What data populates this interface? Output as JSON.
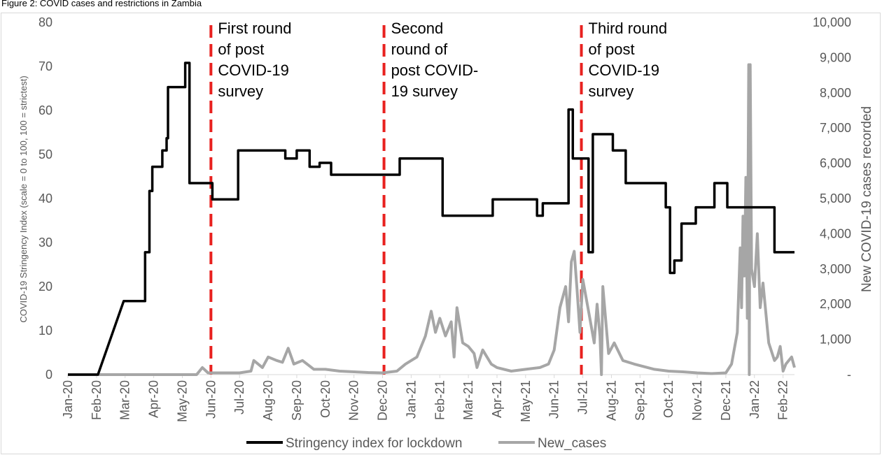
{
  "chart_data": {
    "type": "line",
    "title": "Figure 2: COVID cases and restrictions in Zambia",
    "y_label": "COVID-19 Stringency Index (scale = 0 to 100, 100 = strictest)",
    "y2_label": "New COVID-19 cases recorded",
    "xlim": [
      0,
      25.4
    ],
    "xticks": [
      {
        "value": 0,
        "label": "Jan-20"
      },
      {
        "value": 1,
        "label": "Feb-20"
      },
      {
        "value": 2,
        "label": "Mar-20"
      },
      {
        "value": 3,
        "label": "Apr-20"
      },
      {
        "value": 4,
        "label": "May-20"
      },
      {
        "value": 5,
        "label": "Jun-20"
      },
      {
        "value": 6,
        "label": "Jul-20"
      },
      {
        "value": 7,
        "label": "Aug-20"
      },
      {
        "value": 8,
        "label": "Sep-20"
      },
      {
        "value": 9,
        "label": "Oct-20"
      },
      {
        "value": 10,
        "label": "Nov-20"
      },
      {
        "value": 11,
        "label": "Dec-20"
      },
      {
        "value": 12,
        "label": "Jan-21"
      },
      {
        "value": 13,
        "label": "Feb-21"
      },
      {
        "value": 14,
        "label": "Mar-21"
      },
      {
        "value": 15,
        "label": "Apr-21"
      },
      {
        "value": 16,
        "label": "May-21"
      },
      {
        "value": 17,
        "label": "Jun-21"
      },
      {
        "value": 18,
        "label": "Jul-21"
      },
      {
        "value": 19,
        "label": "Aug-21"
      },
      {
        "value": 20,
        "label": "Sep-21"
      },
      {
        "value": 21,
        "label": "Oct-21"
      },
      {
        "value": 22,
        "label": "Nov-21"
      },
      {
        "value": 23,
        "label": "Dec-21"
      },
      {
        "value": 24,
        "label": "Jan-22"
      },
      {
        "value": 25,
        "label": "Feb-22"
      }
    ],
    "ylim": [
      0,
      80
    ],
    "yticks": [
      0,
      10,
      20,
      30,
      40,
      50,
      60,
      70,
      80
    ],
    "y2lim": [
      0,
      10000
    ],
    "y2ticks": [
      {
        "value": 0,
        "label": "-"
      },
      {
        "value": 1000,
        "label": "1,000"
      },
      {
        "value": 2000,
        "label": "2,000"
      },
      {
        "value": 3000,
        "label": "3,000"
      },
      {
        "value": 4000,
        "label": "4,000"
      },
      {
        "value": 5000,
        "label": "5,000"
      },
      {
        "value": 6000,
        "label": "6,000"
      },
      {
        "value": 7000,
        "label": "7,000"
      },
      {
        "value": 8000,
        "label": "8,000"
      },
      {
        "value": 9000,
        "label": "9,000"
      },
      {
        "value": 10000,
        "label": "10,000"
      }
    ],
    "legend": "bottom",
    "annotations": [
      {
        "x": 5,
        "color": "#e8211f",
        "lines": [
          "First round",
          "of post",
          "COVID-19",
          "survey"
        ]
      },
      {
        "x": 11.05,
        "color": "#e8211f",
        "lines": [
          "Second",
          "round of",
          "post COVID-",
          "19 survey"
        ]
      },
      {
        "x": 17.95,
        "color": "#e8211f",
        "lines": [
          "Third round",
          "of post",
          "COVID-19",
          "survey"
        ]
      }
    ],
    "series": [
      {
        "name": "Stringency index for lockdown",
        "color": "#000000",
        "x": [
          0,
          1.05,
          1.95,
          2.7,
          2.7,
          2.85,
          2.85,
          2.95,
          2.95,
          3.3,
          3.3,
          3.45,
          3.45,
          3.5,
          3.5,
          4.1,
          4.1,
          4.25,
          4.25,
          5.05,
          5.05,
          5.95,
          5.95,
          7.6,
          7.6,
          8.0,
          8.0,
          8.45,
          8.45,
          8.8,
          8.8,
          9.2,
          9.2,
          11.6,
          11.6,
          13.1,
          13.1,
          14.85,
          14.85,
          16.4,
          16.4,
          16.6,
          16.6,
          17.5,
          17.5,
          17.65,
          17.65,
          18.2,
          18.2,
          18.35,
          18.35,
          19.05,
          19.05,
          19.5,
          19.5,
          20.9,
          20.9,
          21.05,
          21.05,
          21.2,
          21.2,
          21.45,
          21.45,
          21.95,
          21.95,
          22.6,
          22.6,
          23.05,
          23.05,
          24.7,
          24.7,
          25.4
        ],
        "values": [
          0,
          0,
          16.7,
          16.7,
          27.8,
          27.8,
          41.7,
          41.7,
          47.2,
          47.2,
          50.9,
          50.9,
          53.7,
          53.7,
          65.3,
          65.3,
          70.8,
          70.8,
          43.5,
          43.5,
          39.8,
          39.8,
          50.9,
          50.9,
          49.1,
          49.1,
          50.9,
          50.9,
          47.2,
          47.2,
          48.1,
          48.1,
          45.4,
          45.4,
          49.1,
          49.1,
          36.1,
          36.1,
          39.8,
          39.8,
          36.1,
          36.1,
          38.9,
          38.9,
          60.2,
          60.2,
          49.1,
          49.1,
          27.8,
          27.8,
          54.6,
          54.6,
          50.9,
          50.9,
          43.5,
          43.5,
          38,
          38,
          23.1,
          23.1,
          25.9,
          25.9,
          34.3,
          34.3,
          38,
          38,
          43.5,
          43.5,
          38,
          38,
          27.8,
          27.8
        ]
      },
      {
        "name": "New_cases",
        "color": "#a6a6a6",
        "axis": "y2",
        "x": [
          0,
          3,
          4.5,
          4.7,
          4.9,
          6,
          6.4,
          6.5,
          6.8,
          7.0,
          7.3,
          7.5,
          7.7,
          7.9,
          8.2,
          8.6,
          9.0,
          9.5,
          10,
          10.5,
          11,
          11.5,
          11.8,
          12.2,
          12.5,
          12.7,
          12.85,
          13.0,
          13.2,
          13.4,
          13.5,
          13.6,
          13.8,
          14.0,
          14.2,
          14.3,
          14.5,
          14.8,
          15,
          15.5,
          16,
          16.5,
          16.8,
          17.0,
          17.2,
          17.4,
          17.5,
          17.6,
          17.7,
          17.8,
          17.9,
          18.0,
          18.2,
          18.4,
          18.5,
          18.6,
          18.65,
          18.7,
          18.9,
          19.1,
          19.4,
          19.8,
          20.5,
          21,
          21.5,
          22,
          22.5,
          23,
          23.2,
          23.4,
          23.5,
          23.55,
          23.6,
          23.65,
          23.7,
          23.75,
          23.8,
          23.82,
          23.85,
          23.9,
          24.0,
          24.1,
          24.2,
          24.3,
          24.5,
          24.7,
          24.8,
          24.9,
          25.0,
          25.1,
          25.3,
          25.4
        ],
        "values": [
          0,
          0,
          0,
          200,
          50,
          50,
          100,
          400,
          200,
          500,
          400,
          350,
          750,
          300,
          400,
          150,
          150,
          100,
          80,
          60,
          50,
          100,
          300,
          500,
          1100,
          1800,
          1200,
          1600,
          1100,
          1500,
          500,
          1900,
          900,
          800,
          600,
          200,
          700,
          300,
          200,
          100,
          150,
          200,
          300,
          700,
          1900,
          2500,
          1500,
          3200,
          3500,
          2400,
          1200,
          2700,
          1800,
          900,
          2000,
          1100,
          0,
          2500,
          600,
          900,
          400,
          300,
          150,
          100,
          80,
          50,
          30,
          50,
          300,
          1200,
          3600,
          1900,
          4500,
          2800,
          5600,
          1600,
          8800,
          0,
          8800,
          3000,
          2500,
          4000,
          1900,
          2600,
          900,
          400,
          500,
          800,
          100,
          300,
          500,
          200
        ]
      }
    ]
  }
}
